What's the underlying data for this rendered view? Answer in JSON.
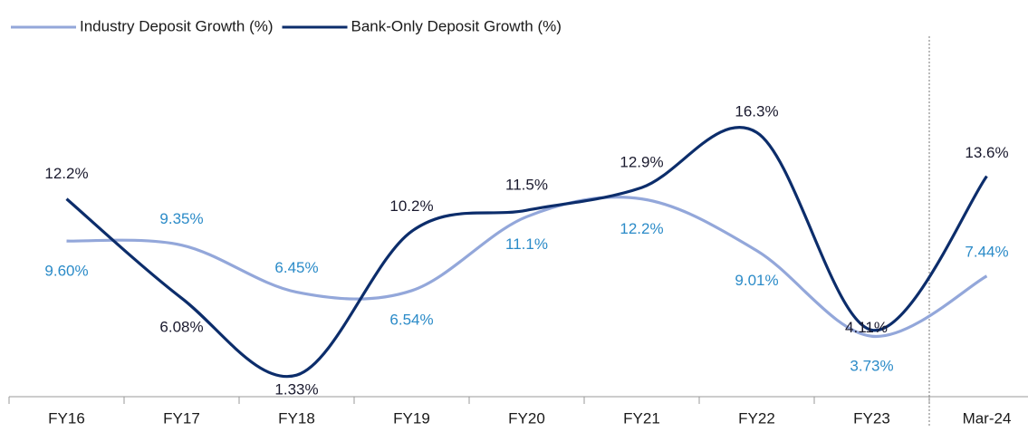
{
  "chart_data": {
    "type": "line",
    "categories": [
      "FY16",
      "FY17",
      "FY18",
      "FY19",
      "FY20",
      "FY21",
      "FY22",
      "FY23",
      "Mar-24"
    ],
    "series": [
      {
        "name": "Industry Deposit Growth (%)",
        "color": "#93a7da",
        "label_color": "#2b8bc8",
        "values": [
          9.6,
          9.35,
          6.45,
          6.54,
          11.1,
          12.2,
          9.01,
          3.73,
          7.44
        ],
        "value_labels": [
          "9.60%",
          "9.35%",
          "6.45%",
          "6.54%",
          "11.1%",
          "12.2%",
          "9.01%",
          "3.73%",
          "7.44%"
        ]
      },
      {
        "name": "Bank-Only Deposit Growth (%)",
        "color": "#0c2d6b",
        "label_color": "#1a1a2e",
        "values": [
          12.2,
          6.08,
          1.33,
          10.2,
          11.5,
          12.9,
          16.3,
          4.11,
          13.6
        ],
        "value_labels": [
          "12.2%",
          "6.08%",
          "1.33%",
          "10.2%",
          "11.5%",
          "12.9%",
          "16.3%",
          "4.11%",
          "13.6%"
        ]
      }
    ]
  }
}
